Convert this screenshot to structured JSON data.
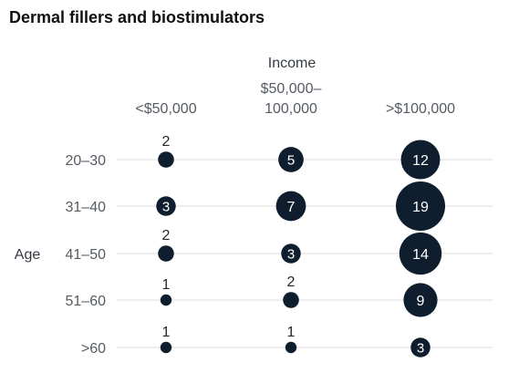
{
  "chart_data": {
    "type": "bubble",
    "title": "Dermal fillers and biostimulators",
    "xlabel": "Income",
    "ylabel": "Age",
    "x_categories": [
      "<$50,000",
      "$50,000–100,000",
      "> $100,000"
    ],
    "x_tick_lines": [
      [
        "<$50,000"
      ],
      [
        "$50,000–",
        "100,000"
      ],
      [
        ">$100,000"
      ]
    ],
    "y_categories": [
      "20–30",
      "31–40",
      "41–50",
      "51–60",
      ">60"
    ],
    "values": [
      [
        2,
        5,
        12
      ],
      [
        3,
        7,
        19
      ],
      [
        2,
        3,
        14
      ],
      [
        1,
        2,
        9
      ],
      [
        1,
        1,
        3
      ]
    ],
    "bubble_color": "#0f1e2e",
    "gridline_color": "#dddddd"
  }
}
